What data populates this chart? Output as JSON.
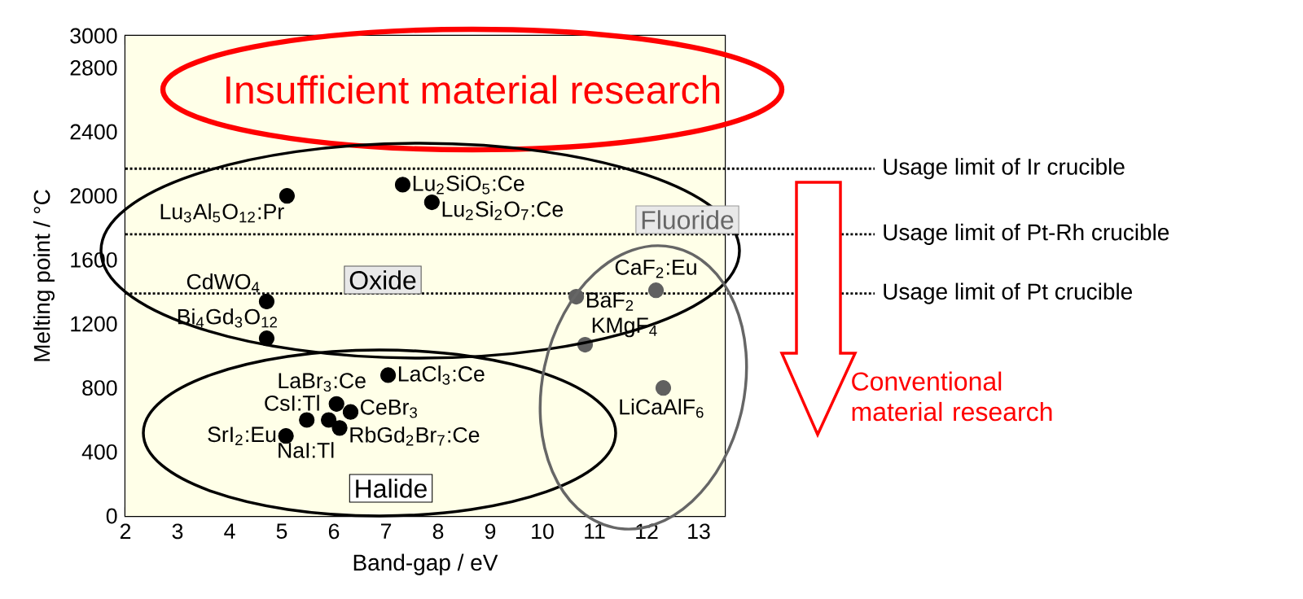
{
  "chart_data": {
    "type": "scatter",
    "xlabel": "Band-gap / eV",
    "ylabel": "Melting point / °C",
    "xlim": [
      2,
      13.5
    ],
    "ylim": [
      0,
      3000
    ],
    "xticks": [
      2,
      3,
      4,
      5,
      6,
      7,
      8,
      9,
      10,
      11,
      12,
      13
    ],
    "yticks": [
      0,
      400,
      800,
      1200,
      1600,
      2000,
      2400,
      2800,
      3000
    ],
    "marker": "circle",
    "series": [
      {
        "type": "scatter",
        "color": "#000000",
        "x": [
          5.1,
          4.71,
          4.71,
          7.32,
          7.88
        ],
        "values": [
          2000,
          1340,
          1110,
          2070,
          1960
        ]
      },
      {
        "type": "scatter",
        "color": "#000000",
        "x": [
          6.05,
          7.04,
          5.48,
          6.32,
          5.9,
          6.11,
          5.08
        ],
        "values": [
          700,
          880,
          600,
          650,
          600,
          550,
          500
        ]
      },
      {
        "type": "scatter",
        "color": "#606060",
        "x": [
          10.65,
          12.18,
          10.82,
          12.32
        ],
        "values": [
          1370,
          1410,
          1070,
          800
        ]
      }
    ],
    "ref_lines": [
      {
        "axis": "y",
        "value": 2170,
        "label": "Usage limit of Ir crucible",
        "line_style": "dotted",
        "color": "#000000"
      },
      {
        "axis": "y",
        "value": 1760,
        "label": "Usage limit of Pt-Rh crucible",
        "line_style": "dotted",
        "color": "#000000"
      },
      {
        "axis": "y",
        "value": 1390,
        "label": "Usage limit of Pt crucible",
        "line_style": "dotted",
        "color": "#000000"
      }
    ],
    "annotations": [
      {
        "text": "Lu$_{3}$Al$_{5}$O$_{12}$:Pr",
        "x": 5.1,
        "y": 2000
      },
      {
        "text": "CdWO$_{4}$",
        "x": 4.71,
        "y": 1340
      },
      {
        "text": "Bi$_{4}$Gd$_{3}$O$_{12}$",
        "x": 4.71,
        "y": 1110
      },
      {
        "text": "Lu$_{2}$SiO$_{5}$:Ce",
        "x": 7.32,
        "y": 2070
      },
      {
        "text": "Lu$_{2}$Si$_{2}$O$_{7}$:Ce",
        "x": 7.88,
        "y": 1960
      },
      {
        "text": "LaBr$_{3}$:Ce",
        "x": 6.05,
        "y": 700
      },
      {
        "text": "LaCl$_{3}$:Ce",
        "x": 7.04,
        "y": 880
      },
      {
        "text": "CsI:Tl",
        "x": 5.48,
        "y": 600
      },
      {
        "text": "CeBr$_{3}$",
        "x": 6.32,
        "y": 650
      },
      {
        "text": "NaI:Tl",
        "x": 5.9,
        "y": 600
      },
      {
        "text": "RbGd$_{2}$Br$_{7}$:Ce",
        "x": 6.11,
        "y": 550
      },
      {
        "text": "SrI$_{2}$:Eu",
        "x": 5.08,
        "y": 500
      },
      {
        "text": "BaF$_{2}$",
        "x": 10.65,
        "y": 1370
      },
      {
        "text": "CaF$_{2}$:Eu",
        "x": 12.18,
        "y": 1410
      },
      {
        "text": "KMgF$_{4}$",
        "x": 10.82,
        "y": 1070
      },
      {
        "text": "LiCaAlF$_{6}$",
        "x": 12.32,
        "y": 800
      },
      "Insufficient material research",
      "Oxide",
      "Halide",
      "Fluoride",
      "Conventional material research"
    ]
  }
}
